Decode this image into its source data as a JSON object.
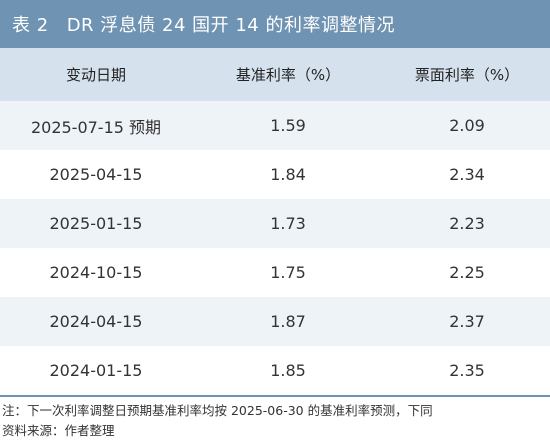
{
  "title": {
    "table_no": "表 2",
    "text": "DR 浮息债 24 国开 14 的利率调整情况"
  },
  "table": {
    "headers": [
      "变动日期",
      "基准利率（%）",
      "票面利率（%）"
    ],
    "rows": [
      [
        "2025-07-15 预期",
        "1.59",
        "2.09"
      ],
      [
        "2025-04-15",
        "1.84",
        "2.34"
      ],
      [
        "2025-01-15",
        "1.73",
        "2.23"
      ],
      [
        "2024-10-15",
        "1.75",
        "2.25"
      ],
      [
        "2024-04-15",
        "1.87",
        "2.37"
      ],
      [
        "2024-01-15",
        "1.85",
        "2.35"
      ]
    ]
  },
  "notes": {
    "note": "注：下一次利率调整日预期基准利率均按 2025-06-30 的基准利率预测，下同",
    "source": "资料来源：作者整理"
  },
  "colors": {
    "title_bg": "#6f93b3",
    "header_bg": "#d5e2ee",
    "stripe_bg": "#eef3f8"
  }
}
